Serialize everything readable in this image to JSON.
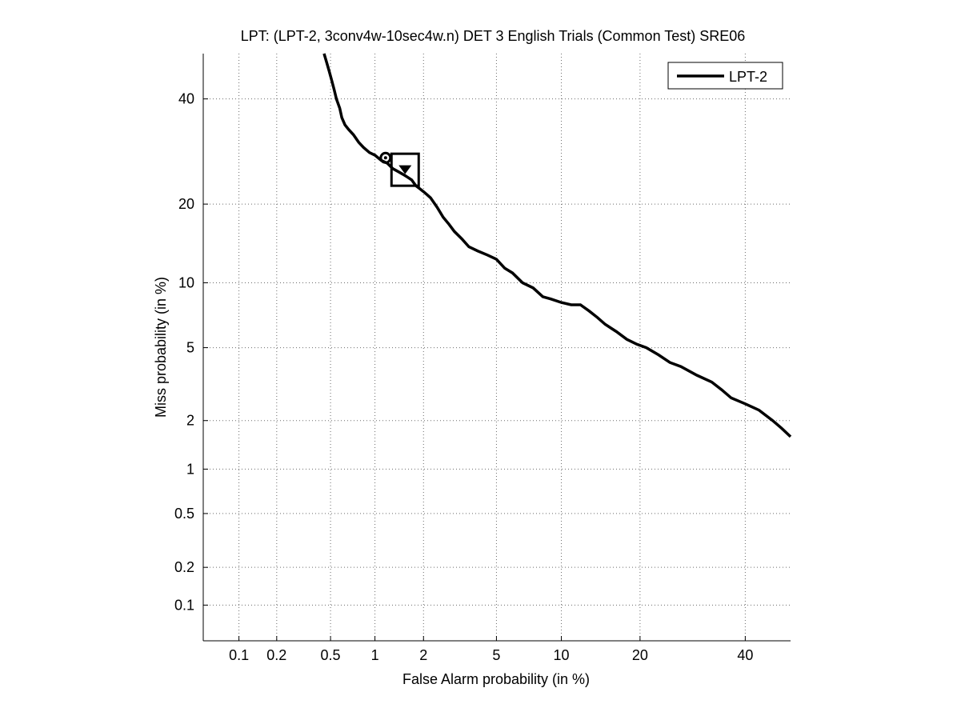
{
  "chart_data": {
    "type": "line",
    "title": "LPT: (LPT-2, 3conv4w-10sec4w.n) DET 3 English Trials (Common Test) SRE06",
    "xlabel": "False Alarm probability (in %)",
    "ylabel": "Miss probability (in %)",
    "x_scale": "probit",
    "y_scale": "probit",
    "xlim": [
      0.05,
      50
    ],
    "ylim": [
      0.05,
      50
    ],
    "x_ticks": [
      0.1,
      0.2,
      0.5,
      1,
      2,
      5,
      10,
      20,
      40
    ],
    "x_tick_labels": [
      "0.1",
      "0.2",
      "0.5",
      "1",
      "2",
      "5",
      "10",
      "20",
      "40"
    ],
    "y_ticks": [
      0.1,
      0.2,
      0.5,
      1,
      2,
      5,
      10,
      20,
      40
    ],
    "y_tick_labels": [
      "0.1",
      "0.2",
      "0.5",
      "1",
      "2",
      "5",
      "10",
      "20",
      "40"
    ],
    "grid": true,
    "legend": {
      "placement": "top-right",
      "entries": [
        "LPT-2"
      ]
    },
    "colors": {
      "line": "#000000",
      "grid": "#6b6b6b",
      "axes": "#000000"
    },
    "series": [
      {
        "name": "LPT-2",
        "x": [
          0.45,
          0.47,
          0.49,
          0.51,
          0.53,
          0.55,
          0.58,
          0.6,
          0.63,
          0.67,
          0.72,
          0.78,
          0.84,
          0.92,
          1.0,
          1.1,
          1.2,
          1.3,
          1.4,
          1.5,
          1.6,
          1.7,
          1.8,
          1.9,
          2.0,
          2.1,
          2.2,
          2.4,
          2.6,
          2.8,
          3.0,
          3.3,
          3.6,
          4.0,
          4.5,
          5.0,
          5.5,
          6.0,
          6.7,
          7.5,
          8.3,
          9.0,
          10.0,
          11.0,
          12.0,
          13.0,
          14.0,
          15.0,
          16.5,
          18.0,
          19.5,
          21.0,
          23.0,
          25.0,
          27.0,
          30.0,
          33.0,
          35.0,
          37.0,
          40.0,
          43.0,
          46.0,
          48.0,
          50.0
        ],
        "y": [
          50.0,
          48.0,
          46.0,
          44.0,
          42.0,
          40.0,
          38.0,
          36.0,
          34.5,
          33.5,
          32.5,
          31.0,
          30.0,
          29.0,
          28.5,
          27.5,
          27.0,
          26.0,
          25.5,
          25.0,
          24.5,
          24.0,
          23.0,
          22.5,
          22.0,
          21.5,
          21.0,
          19.5,
          18.0,
          17.0,
          16.0,
          15.0,
          14.0,
          13.5,
          13.0,
          12.5,
          11.5,
          11.0,
          10.0,
          9.5,
          8.7,
          8.5,
          8.2,
          8.0,
          8.0,
          7.5,
          7.0,
          6.5,
          6.0,
          5.5,
          5.2,
          5.0,
          4.6,
          4.2,
          4.0,
          3.6,
          3.3,
          3.0,
          2.7,
          2.5,
          2.3,
          2.0,
          1.8,
          1.6
        ]
      }
    ],
    "markers": [
      {
        "name": "circle",
        "x": 1.17,
        "y": 28.0
      },
      {
        "name": "triangle",
        "x": 1.55,
        "y": 25.8
      },
      {
        "name": "square",
        "x": 1.55,
        "y": 25.8
      }
    ]
  }
}
